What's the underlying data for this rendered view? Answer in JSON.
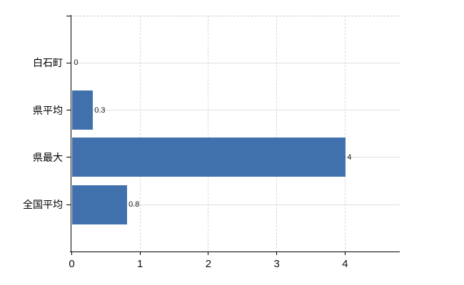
{
  "chart_data": {
    "type": "bar",
    "orientation": "horizontal",
    "title": "",
    "categories": [
      "白石町",
      "県平均",
      "県最大",
      "全国平均"
    ],
    "values": [
      0,
      0.3,
      4,
      0.8
    ],
    "value_labels": [
      "0",
      "0.3",
      "4",
      "0.8"
    ],
    "xticks": [
      0,
      1,
      2,
      3,
      4
    ],
    "xtick_labels": [
      "0",
      "1",
      "2",
      "3",
      "4"
    ],
    "xlim": [
      0,
      4.8
    ],
    "grid": true,
    "legend": "none",
    "colors": {
      "bar": "#4171ad",
      "axis": "#000000",
      "h_grid": "#dbe2d8",
      "v_grid": "#d8d8d8",
      "top_border": "#cccccc",
      "category_label": "#000000",
      "value_label": "#1a1a1a",
      "tick_label": "#111111"
    }
  }
}
